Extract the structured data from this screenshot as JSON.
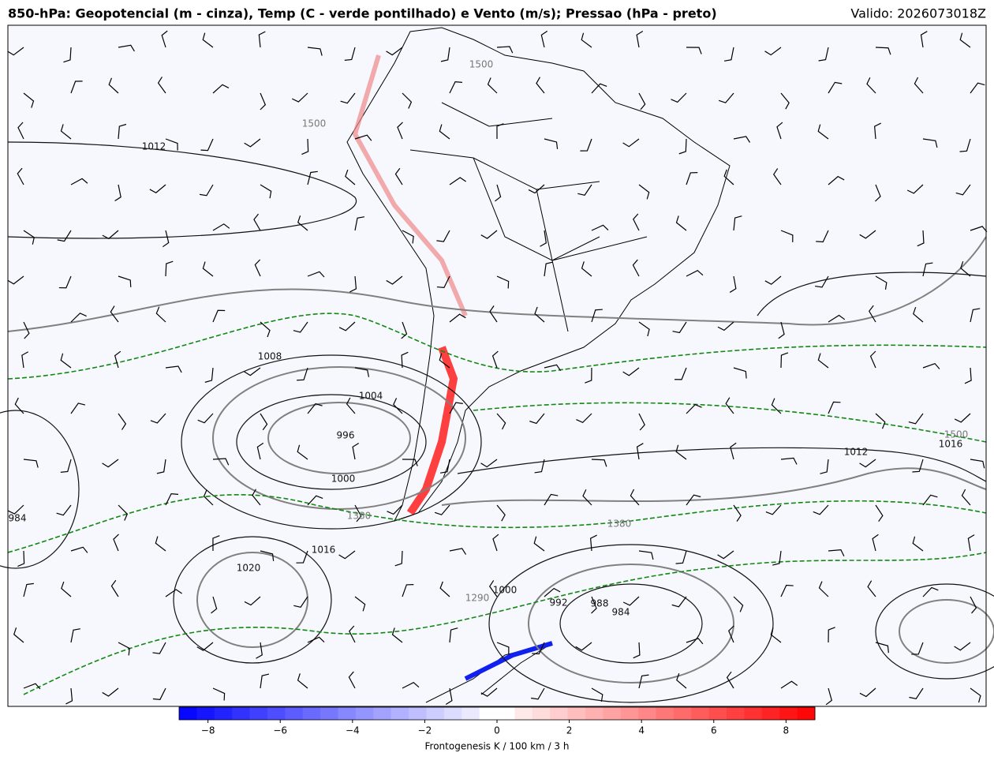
{
  "title": "850-hPa: Geopotencial (m - cinza), Temp (C - verde pontilhado) e Vento (m/s); Pressao (hPa - preto)",
  "valid": "Valido: 2026073018Z",
  "colorbar": {
    "label": "Frontogenesis K / 100 km / 3 h",
    "lim": [
      -8.8,
      8.8
    ],
    "ticks": [
      {
        "value": -8,
        "label": "−8"
      },
      {
        "value": -6,
        "label": "−6"
      },
      {
        "value": -4,
        "label": "−4"
      },
      {
        "value": -2,
        "label": "−2"
      },
      0,
      2,
      4,
      6,
      8
    ]
  },
  "contour_labels": [
    "1012",
    "1500",
    "1008",
    "1500",
    "1004",
    "1000",
    "1380",
    "1380",
    "1016",
    "1020",
    "1012",
    "1016",
    "1000",
    "1290",
    "992",
    "988",
    "984",
    "996",
    "984",
    "1500"
  ]
}
